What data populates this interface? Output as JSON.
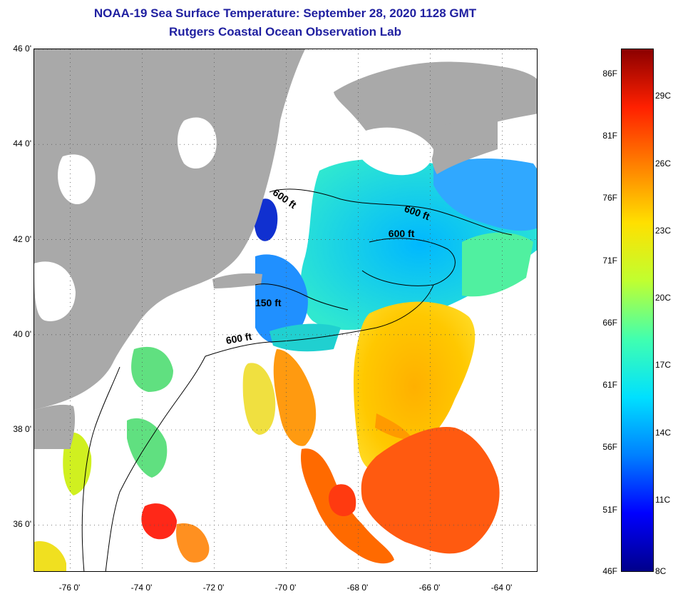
{
  "title": {
    "line1": "NOAA-19 Sea Surface Temperature:  September 28, 2020 1128 GMT",
    "line2": "Rutgers Coastal Ocean Observation Lab"
  },
  "map": {
    "lon_range": [
      -77.0,
      -63.0
    ],
    "lat_range": [
      35.0,
      46.0
    ],
    "lat_ticks": [
      {
        "lat": 46,
        "label": "46 0'"
      },
      {
        "lat": 44,
        "label": "44 0'"
      },
      {
        "lat": 42,
        "label": "42 0'"
      },
      {
        "lat": 40,
        "label": "40 0'"
      },
      {
        "lat": 38,
        "label": "38 0'"
      },
      {
        "lat": 36,
        "label": "36 0'"
      }
    ],
    "lon_ticks": [
      {
        "lon": -76,
        "label": "-76 0'"
      },
      {
        "lon": -74,
        "label": "-74 0'"
      },
      {
        "lon": -72,
        "label": "-72 0'"
      },
      {
        "lon": -70,
        "label": "-70 0'"
      },
      {
        "lon": -68,
        "label": "-68 0'"
      },
      {
        "lon": -66,
        "label": "-66 0'"
      },
      {
        "lon": -64,
        "label": "-64 0'"
      }
    ],
    "contour_labels": [
      {
        "text": "600 ft",
        "lon": -70.1,
        "lat": 42.8,
        "rotate": 35
      },
      {
        "text": "600 ft",
        "lon": -66.4,
        "lat": 42.5,
        "rotate": 20
      },
      {
        "text": "600 ft",
        "lon": -66.8,
        "lat": 42.05,
        "rotate": 0
      },
      {
        "text": "150 ft",
        "lon": -70.5,
        "lat": 40.6,
        "rotate": 0
      },
      {
        "text": "600 ft",
        "lon": -71.3,
        "lat": 39.85,
        "rotate": -10
      }
    ],
    "colors": {
      "land": "#a9a9a9",
      "cloud": "#ffffff",
      "gridline": "#555555"
    }
  },
  "colorbar": {
    "min_f": 46,
    "max_f": 88,
    "fahrenheit_labels": [
      "86F",
      "81F",
      "76F",
      "71F",
      "66F",
      "61F",
      "56F",
      "51F",
      "46F"
    ],
    "fahrenheit_values": [
      86,
      81,
      76,
      71,
      66,
      61,
      56,
      51,
      46
    ],
    "celsius_labels": [
      "29C",
      "26C",
      "23C",
      "20C",
      "17C",
      "14C",
      "11C",
      "8C"
    ],
    "celsius_values": [
      29,
      26,
      23,
      20,
      17,
      14,
      11,
      8
    ],
    "gradient": [
      "#00008b",
      "#0000ff",
      "#0080ff",
      "#00e0ff",
      "#40ffb0",
      "#c0ff30",
      "#ffe000",
      "#ff8000",
      "#ff2000",
      "#8b0000"
    ]
  }
}
